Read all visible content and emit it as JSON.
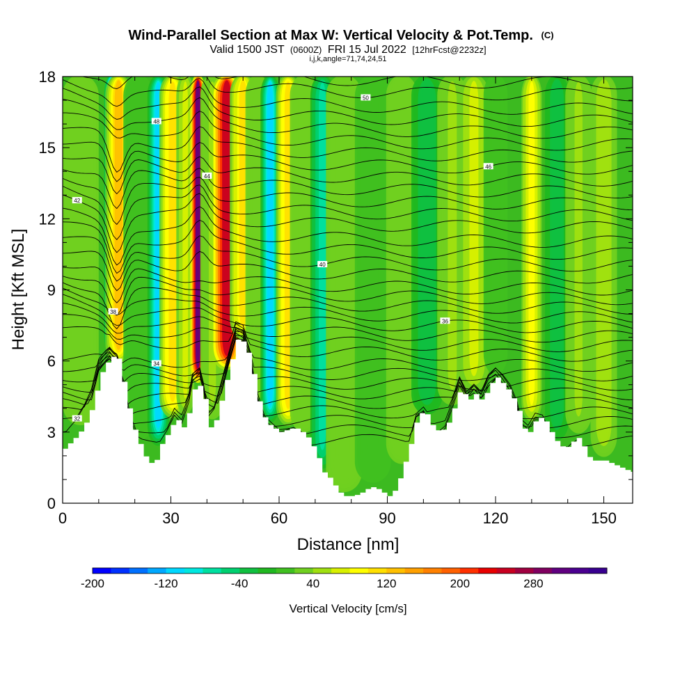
{
  "chart_data": {
    "type": "heatmap",
    "title": "Wind-Parallel Section at Max W: Vertical Velocity & Pot.Temp.",
    "title_suffix": "(C)",
    "subtitle_parts": [
      "Valid 1500 JST",
      "(0600Z)",
      "FRI 15 Jul 2022",
      "[12hrFcst@2232z]"
    ],
    "subtitle2": "i,j,k,angle=71,74,24,51",
    "xlabel": "Distance [nm]",
    "ylabel": "Height [Kft MSL]",
    "xlim": [
      0,
      158
    ],
    "ylim": [
      0,
      18
    ],
    "x_ticks": [
      "0",
      "30",
      "60",
      "90",
      "120",
      "150"
    ],
    "x_tick_values": [
      0,
      30,
      60,
      90,
      120,
      150
    ],
    "y_ticks": [
      "0",
      "3",
      "6",
      "9",
      "12",
      "15",
      "18"
    ],
    "y_tick_values": [
      0,
      3,
      6,
      9,
      12,
      15,
      18
    ],
    "terrain": [
      [
        0,
        2.3
      ],
      [
        2,
        2.6
      ],
      [
        4,
        2.9
      ],
      [
        6,
        3.4
      ],
      [
        8,
        4.1
      ],
      [
        10,
        5.4
      ],
      [
        13,
        6.2
      ],
      [
        15,
        6.1
      ],
      [
        17,
        4.8
      ],
      [
        18,
        4.0
      ],
      [
        19,
        3.3
      ],
      [
        21,
        2.5
      ],
      [
        23,
        1.8
      ],
      [
        25,
        1.6
      ],
      [
        27,
        2.5
      ],
      [
        29,
        3.0
      ],
      [
        31,
        3.6
      ],
      [
        33,
        3.2
      ],
      [
        35,
        4.0
      ],
      [
        36,
        4.8
      ],
      [
        38,
        5.0
      ],
      [
        39,
        4.4
      ],
      [
        40,
        3.1
      ],
      [
        42,
        3.5
      ],
      [
        44,
        4.6
      ],
      [
        46,
        5.8
      ],
      [
        48,
        6.9
      ],
      [
        50,
        6.8
      ],
      [
        52,
        5.9
      ],
      [
        53,
        5.0
      ],
      [
        54,
        4.3
      ],
      [
        56,
        3.4
      ],
      [
        58,
        3.2
      ],
      [
        60,
        3.0
      ],
      [
        62,
        3.1
      ],
      [
        64,
        3.2
      ],
      [
        66,
        3.0
      ],
      [
        68,
        2.7
      ],
      [
        70,
        2.1
      ],
      [
        72,
        1.3
      ],
      [
        74,
        1.0
      ],
      [
        76,
        0.5
      ],
      [
        78,
        0.3
      ],
      [
        80,
        0.3
      ],
      [
        82,
        0.4
      ],
      [
        84,
        0.6
      ],
      [
        86,
        0.7
      ],
      [
        88,
        0.5
      ],
      [
        90,
        0.3
      ],
      [
        92,
        0.6
      ],
      [
        94,
        1.5
      ],
      [
        96,
        2.5
      ],
      [
        98,
        3.7
      ],
      [
        100,
        3.9
      ],
      [
        102,
        3.3
      ],
      [
        104,
        3.0
      ],
      [
        106,
        3.2
      ],
      [
        108,
        4.0
      ],
      [
        110,
        4.9
      ],
      [
        112,
        4.3
      ],
      [
        114,
        4.6
      ],
      [
        116,
        4.3
      ],
      [
        118,
        5.0
      ],
      [
        120,
        5.3
      ],
      [
        122,
        5.0
      ],
      [
        124,
        4.6
      ],
      [
        126,
        3.9
      ],
      [
        127,
        3.2
      ],
      [
        129,
        3.0
      ],
      [
        131,
        3.6
      ],
      [
        133,
        3.6
      ],
      [
        135,
        3.0
      ],
      [
        137,
        2.5
      ],
      [
        139,
        2.3
      ],
      [
        141,
        2.6
      ],
      [
        143,
        2.8
      ],
      [
        145,
        2.0
      ],
      [
        147,
        1.8
      ],
      [
        150,
        1.8
      ],
      [
        153,
        1.6
      ],
      [
        156,
        1.4
      ],
      [
        158,
        1.3
      ]
    ],
    "velocity_bands": [
      {
        "x": 5,
        "w": 3,
        "v": 20
      },
      {
        "x": 13.5,
        "w": 1.2,
        "v": -170
      },
      {
        "x": 15.5,
        "w": 2.2,
        "v": 130
      },
      {
        "x": 21,
        "w": 2.5,
        "v": 10
      },
      {
        "x": 26.5,
        "w": 1.8,
        "v": -110
      },
      {
        "x": 30.5,
        "w": 2.2,
        "v": 110
      },
      {
        "x": 34,
        "w": 1.5,
        "v": 60
      },
      {
        "x": 37.5,
        "w": 1.3,
        "v": 300
      },
      {
        "x": 41.5,
        "w": 2.0,
        "v": 40
      },
      {
        "x": 45.5,
        "w": 2.6,
        "v": 240
      },
      {
        "x": 50,
        "w": 2.2,
        "v": 100
      },
      {
        "x": 54,
        "w": 2.0,
        "v": 20
      },
      {
        "x": 57.5,
        "w": 1.6,
        "v": -110
      },
      {
        "x": 62.5,
        "w": 2.0,
        "v": 110
      },
      {
        "x": 67,
        "w": 2.4,
        "v": 30
      },
      {
        "x": 72,
        "w": 2.0,
        "v": -70
      },
      {
        "x": 78,
        "w": 3.0,
        "v": 20
      },
      {
        "x": 86,
        "w": 3.0,
        "v": 10
      },
      {
        "x": 94,
        "w": 2.6,
        "v": 30
      },
      {
        "x": 101,
        "w": 2.6,
        "v": -40
      },
      {
        "x": 108,
        "w": 2.5,
        "v": 40
      },
      {
        "x": 114,
        "w": 2.5,
        "v": 60
      },
      {
        "x": 120,
        "w": 2.0,
        "v": 10
      },
      {
        "x": 130,
        "w": 1.7,
        "v": 80
      },
      {
        "x": 137,
        "w": 2.0,
        "v": -40
      },
      {
        "x": 143,
        "w": 2.2,
        "v": 40
      },
      {
        "x": 150,
        "w": 2.2,
        "v": 50
      }
    ],
    "theta_contours": [
      {
        "h0": 2.6,
        "label": "32",
        "show": true
      },
      {
        "h0": 3.0,
        "label": "",
        "show": false
      },
      {
        "h0": 3.4,
        "label": "",
        "show": false
      },
      {
        "h0": 3.8,
        "label": "",
        "show": false
      },
      {
        "h0": 4.2,
        "label": "",
        "show": false
      },
      {
        "h0": 4.6,
        "label": "",
        "show": false
      },
      {
        "h0": 5.0,
        "label": "",
        "show": false
      },
      {
        "h0": 5.4,
        "label": "",
        "show": false
      },
      {
        "h0": 5.8,
        "label": "34",
        "show": true
      },
      {
        "h0": 6.2,
        "label": "",
        "show": false
      },
      {
        "h0": 6.6,
        "label": "",
        "show": false
      },
      {
        "h0": 7.0,
        "label": "",
        "show": false
      },
      {
        "h0": 7.4,
        "label": "36",
        "show": true
      },
      {
        "h0": 7.8,
        "label": "",
        "show": false
      },
      {
        "h0": 8.2,
        "label": "",
        "show": false
      },
      {
        "h0": 8.6,
        "label": "38",
        "show": true
      },
      {
        "h0": 9.0,
        "label": "",
        "show": false
      },
      {
        "h0": 9.5,
        "label": "",
        "show": false
      },
      {
        "h0": 10.0,
        "label": "40",
        "show": true
      },
      {
        "h0": 10.5,
        "label": "",
        "show": false
      },
      {
        "h0": 11.0,
        "label": "",
        "show": false
      },
      {
        "h0": 11.6,
        "label": "42",
        "show": true
      },
      {
        "h0": 12.1,
        "label": "",
        "show": false
      },
      {
        "h0": 12.6,
        "label": "",
        "show": false
      },
      {
        "h0": 13.1,
        "label": "44",
        "show": true
      },
      {
        "h0": 13.6,
        "label": "",
        "show": false
      },
      {
        "h0": 14.1,
        "label": "46",
        "show": true
      },
      {
        "h0": 14.6,
        "label": "",
        "show": false
      },
      {
        "h0": 15.1,
        "label": "",
        "show": false
      },
      {
        "h0": 15.6,
        "label": "48",
        "show": true
      },
      {
        "h0": 16.1,
        "label": "",
        "show": false
      },
      {
        "h0": 16.6,
        "label": "",
        "show": false
      },
      {
        "h0": 17.2,
        "label": "50",
        "show": true
      },
      {
        "h0": 17.7,
        "label": "",
        "show": false
      }
    ],
    "colorbar": {
      "label": "Vertical Velocity [cm/s]",
      "min": -200,
      "max": 360,
      "step": 20,
      "tick_labels": [
        "-200",
        "-120",
        "-40",
        "40",
        "120",
        "200",
        "280"
      ],
      "tick_values": [
        -200,
        -120,
        -40,
        40,
        120,
        200,
        280
      ],
      "colors": [
        "#0000ff",
        "#0030ff",
        "#0070ff",
        "#00a8ff",
        "#00d8ff",
        "#00e8e0",
        "#00e0a0",
        "#00d070",
        "#10c040",
        "#20b820",
        "#40c020",
        "#70d020",
        "#a0e010",
        "#d8f000",
        "#ffff00",
        "#ffe000",
        "#ffc000",
        "#ffa000",
        "#ff8000",
        "#ff6000",
        "#ff3000",
        "#e80000",
        "#c80020",
        "#a00040",
        "#800060",
        "#600080",
        "#4a0090",
        "#380090"
      ]
    }
  }
}
